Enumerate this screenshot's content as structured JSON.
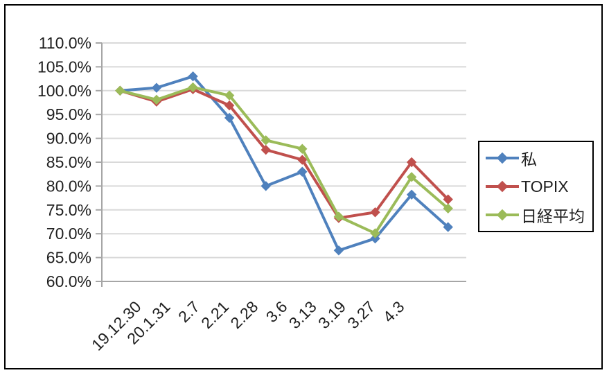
{
  "window": {
    "background": "#ffffff",
    "border_color": "#000000"
  },
  "chart_data": {
    "type": "line",
    "categories": [
      "19.12.30",
      "20.1.31",
      "2.7",
      "2.21",
      "2.28",
      "3.6",
      "3.13",
      "3.19",
      "3.27",
      "4.3"
    ],
    "series": [
      {
        "name": "私",
        "color": "#4F81BD",
        "values": [
          100.0,
          100.6,
          103.0,
          94.3,
          80.0,
          83.0,
          66.5,
          69.0,
          78.2,
          71.4
        ]
      },
      {
        "name": "TOPIX",
        "color": "#C0504D",
        "values": [
          100.0,
          97.7,
          100.3,
          96.9,
          87.6,
          85.5,
          73.3,
          74.5,
          85.0,
          77.2
        ]
      },
      {
        "name": "日経平均",
        "color": "#9BBB59",
        "values": [
          100.0,
          98.1,
          100.7,
          99.0,
          89.6,
          87.8,
          73.6,
          70.1,
          81.9,
          75.3
        ]
      }
    ],
    "ylim": [
      60,
      110
    ],
    "ytick_step": 5,
    "ytick_labels": [
      "110.0%",
      "105.0%",
      "100.0%",
      "95.0%",
      "90.0%",
      "85.0%",
      "80.0%",
      "75.0%",
      "70.0%",
      "65.0%",
      "60.0%"
    ],
    "grid": true,
    "legend_position": "right",
    "marker": "diamond",
    "gridline_color": "#D9D9D9",
    "axis_color": "#A6A6A6",
    "text_color": "#1f1f1f"
  }
}
